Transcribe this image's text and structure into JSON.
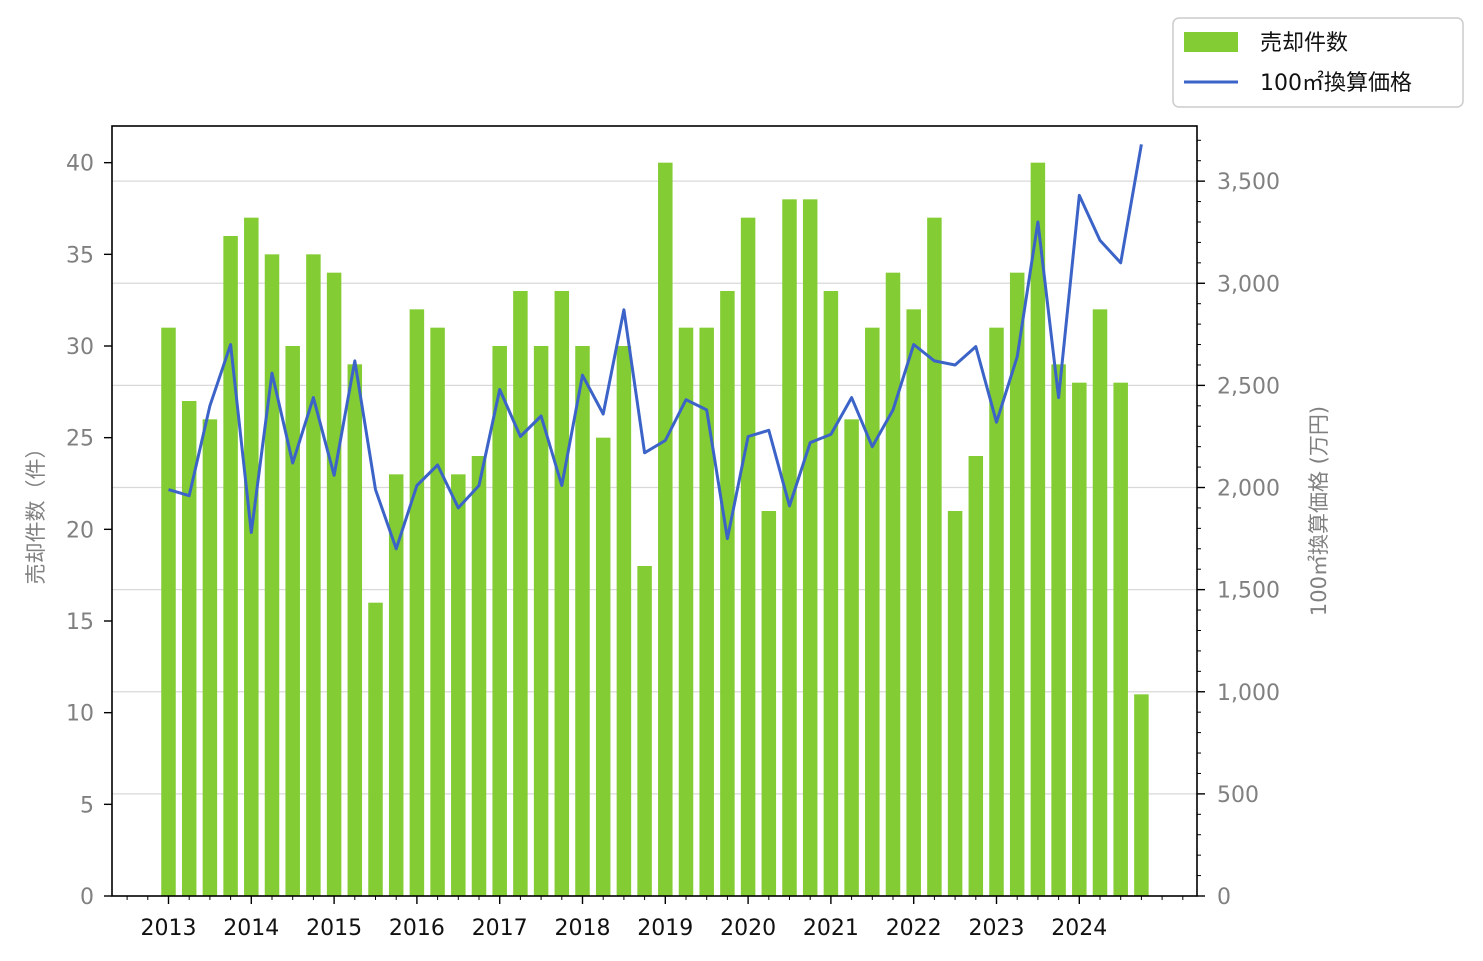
{
  "chart_data": {
    "type": "bar+line",
    "x_tick_labels": [
      "2013",
      "2014",
      "2015",
      "2016",
      "2017",
      "2018",
      "2019",
      "2020",
      "2021",
      "2022",
      "2023",
      "2024"
    ],
    "periods_per_year": 4,
    "start_year": 2013,
    "y_left": {
      "label": "売却件数（件）",
      "ylim": [
        0,
        42
      ],
      "ticks": [
        0,
        5,
        10,
        15,
        20,
        25,
        30,
        35,
        40
      ]
    },
    "y_right": {
      "label": "100㎡換算価格 (万円)",
      "ylim": [
        0,
        3770
      ],
      "ticks": [
        0,
        500,
        1000,
        1500,
        2000,
        2500,
        3000,
        3500
      ],
      "tick_labels": [
        "0",
        "500",
        "1,000",
        "1,500",
        "2,000",
        "2,500",
        "3,000",
        "3,500"
      ]
    },
    "grid": "horizontal (right axis)",
    "legend": {
      "position": "top-right",
      "bar_label": "売却件数",
      "line_label": "100㎡換算価格"
    },
    "series": [
      {
        "name": "売却件数",
        "kind": "bar",
        "axis": "left",
        "color": "#84cc33",
        "values": [
          31,
          27,
          26,
          36,
          37,
          35,
          30,
          35,
          34,
          29,
          16,
          23,
          32,
          31,
          23,
          24,
          30,
          33,
          30,
          33,
          30,
          25,
          30,
          18,
          40,
          31,
          31,
          33,
          37,
          21,
          38,
          38,
          33,
          26,
          31,
          34,
          32,
          37,
          21,
          24,
          31,
          34,
          40,
          29,
          28,
          32,
          28,
          11
        ]
      },
      {
        "name": "100㎡換算価格",
        "kind": "line",
        "axis": "right",
        "color": "#3b63c8",
        "values": [
          1990,
          1960,
          2400,
          2700,
          1780,
          2560,
          2120,
          2440,
          2060,
          2620,
          1990,
          1700,
          2010,
          2110,
          1900,
          2010,
          2480,
          2250,
          2350,
          2010,
          2550,
          2360,
          2870,
          2170,
          2230,
          2430,
          2380,
          1750,
          2250,
          2280,
          1910,
          2220,
          2260,
          2440,
          2200,
          2380,
          2700,
          2620,
          2600,
          2690,
          2320,
          2640,
          3300,
          2440,
          3430,
          3210,
          3100,
          3680
        ]
      }
    ]
  }
}
